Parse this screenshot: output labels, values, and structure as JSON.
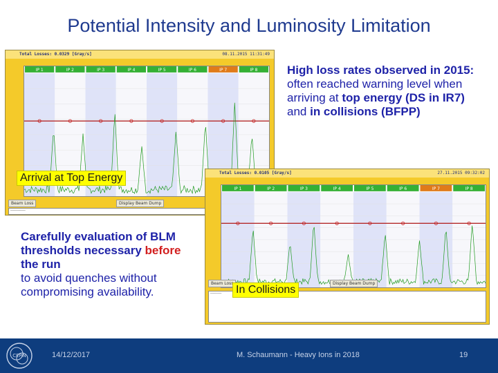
{
  "title": "Potential Intensity and Luminosity Limitation",
  "callouts": {
    "top_energy": "Arrival at Top Energy",
    "collisions": "In Collisions"
  },
  "note_right": {
    "part1": "High loss rates observed in 2015:",
    "part2": " often reached warning level when arriving at ",
    "part3": "top energy (DS in IR7)",
    "part4": " and ",
    "part5": "in collisions (BFPP)"
  },
  "note_left": {
    "part1": "Carefully evaluation of BLM thresholds necessary ",
    "part2": "before",
    "part3": " the run",
    "part4": "to avoid quenches without compromising availability."
  },
  "footer": {
    "date": "14/12/2017",
    "author": "M. Schaumann - Heavy Ions in 2018",
    "page": "19"
  },
  "colors": {
    "title": "#1f3a8f",
    "text": "#1e22a8",
    "emphasis": "#d21e1e",
    "callout_bg": "#ffff00",
    "footer_bg": "#0e3d7e",
    "panel_bg": "#f4ca2a",
    "loss_trace": "#1f9a1f",
    "threshold_line": "#b42828"
  },
  "panels": {
    "top": {
      "header_loss": "Total Losses: 0.0329 [Gray/s]",
      "header_time": "08.11.2015 11:31:49",
      "ips": [
        "IP 1",
        "IP 2",
        "IP 3",
        "IP 4",
        "IP 5",
        "IP 6",
        "IP 7",
        "IP 8"
      ],
      "controls": [
        "Beam Loss",
        "Display Beam Dump"
      ]
    },
    "bottom": {
      "header_loss": "Total Losses: 0.0105 [Gray/s]",
      "header_time": "27.11.2015 09:32:02",
      "ips": [
        "IP 1",
        "IP 2",
        "IP 3",
        "IP 4",
        "IP 5",
        "IP 6",
        "IP 7",
        "IP 8"
      ],
      "controls": [
        "Beam Loss",
        "Display Beam Dump"
      ]
    }
  }
}
